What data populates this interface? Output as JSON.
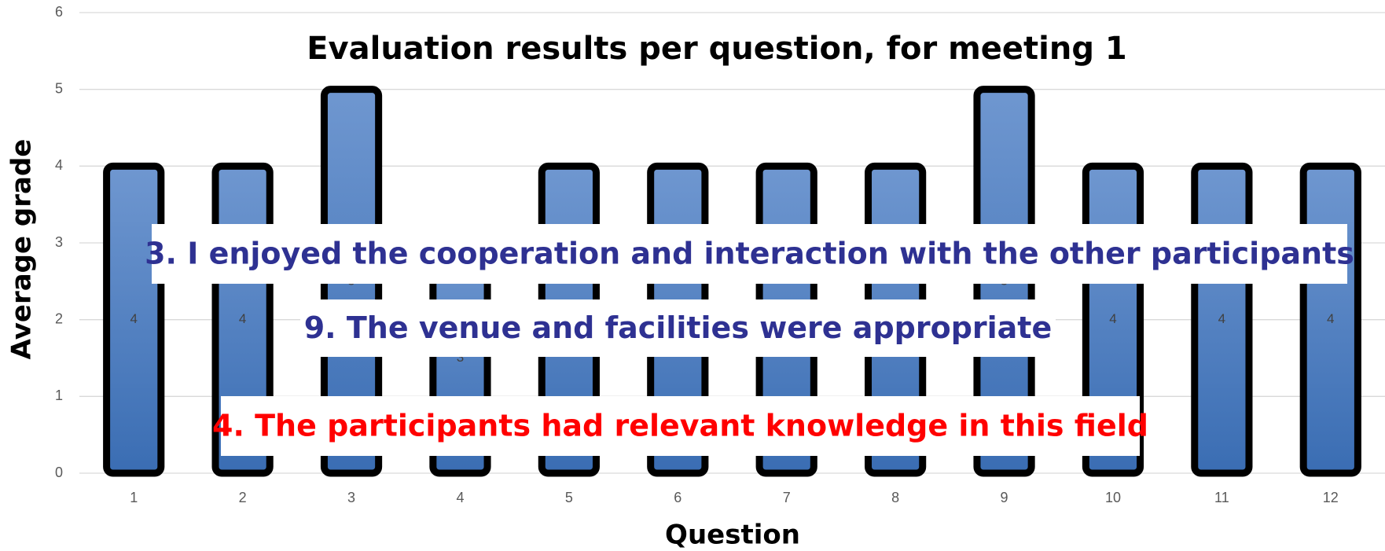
{
  "chart_data": {
    "type": "bar",
    "title": "Evaluation results per question, for meeting 1",
    "x_label": "Question",
    "y_label": "Average grade",
    "categories": [
      "1",
      "2",
      "3",
      "4",
      "5",
      "6",
      "7",
      "8",
      "9",
      "10",
      "11",
      "12"
    ],
    "values": [
      4,
      4,
      5,
      3,
      4,
      4,
      4,
      4,
      5,
      4,
      4,
      4
    ],
    "color": "#4f81c4",
    "ylim": [
      0,
      6
    ],
    "yticks": [
      0,
      1,
      2,
      3,
      4,
      5,
      6
    ],
    "grid": true,
    "annotations": [
      {
        "text": "3. I enjoyed the cooperation and interaction with the other participants",
        "color": "#2e3192"
      },
      {
        "text": "9. The venue and facilities were appropriate",
        "color": "#2e3192"
      },
      {
        "text": "4. The participants had relevant knowledge in this field",
        "color": "#ff0000"
      }
    ]
  }
}
